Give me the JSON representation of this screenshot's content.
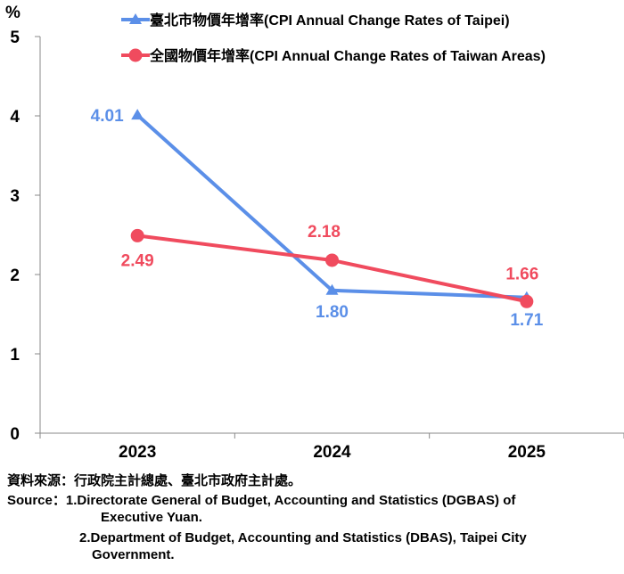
{
  "chart_data": {
    "type": "line",
    "categories": [
      "2023",
      "2024",
      "2025"
    ],
    "y_unit_label": "%",
    "ylim": [
      0,
      5
    ],
    "y_ticks": [
      "0",
      "1",
      "2",
      "3",
      "4",
      "5"
    ],
    "grid": false,
    "legend_position": "top",
    "series": [
      {
        "name": "臺北市物價年增率(CPI Annual Change Rates of Taipei)",
        "values": [
          4.01,
          1.8,
          1.71
        ],
        "labels": [
          "4.01",
          "1.80",
          "1.71"
        ],
        "color": "#5B8FE8",
        "marker": "triangle"
      },
      {
        "name": "全國物價年增率(CPI Annual Change Rates of Taiwan Areas)",
        "values": [
          2.49,
          2.18,
          1.66
        ],
        "labels": [
          "2.49",
          "2.18",
          "1.66"
        ],
        "color": "#F04B5E",
        "marker": "circle"
      }
    ]
  },
  "notes": {
    "line1": "資料來源：行政院主計總處、臺北市政府主計處。",
    "line2": "Source：1.Directorate General of Budget, Accounting and Statistics (DGBAS) of",
    "line3": "Executive Yuan.",
    "line4": "2.Department of Budget, Accounting and Statistics (DBAS), Taipei City",
    "line5": "Government."
  }
}
